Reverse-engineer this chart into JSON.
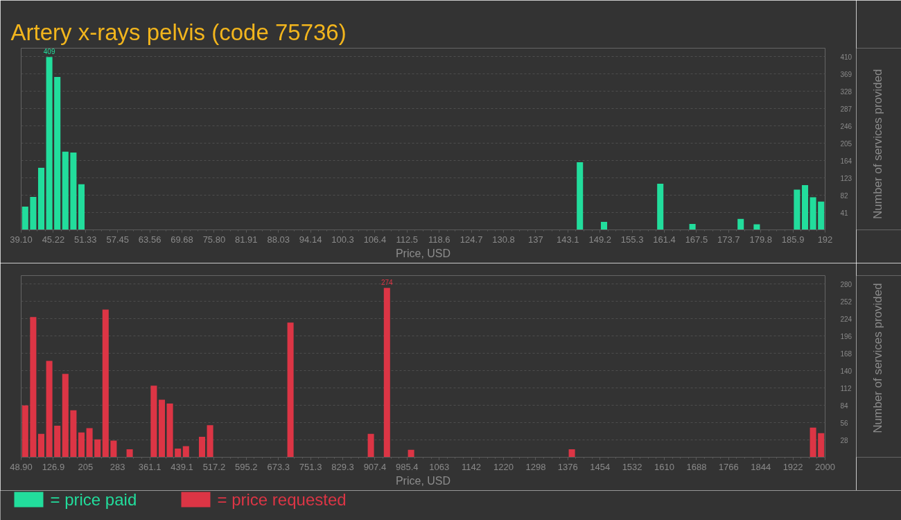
{
  "chart_data": [
    {
      "type": "histogram",
      "title": "Artery x-rays pelvis (code 75736)",
      "xlabel": "Price, USD",
      "ylabel": "Number of services provided",
      "bins": [
        39.1,
        40.629,
        42.158,
        43.687,
        45.216,
        46.745,
        48.274,
        49.803,
        51.332,
        52.861,
        54.39,
        55.919,
        57.448,
        58.977,
        60.506,
        62.035,
        63.564,
        65.093,
        66.622,
        68.151,
        69.68,
        71.209,
        72.738,
        74.267,
        75.796,
        77.325,
        78.854,
        80.383,
        81.912,
        83.441,
        84.97,
        86.499,
        88.028,
        89.557,
        91.086,
        92.615,
        94.144,
        95.673,
        97.202,
        98.731,
        100.26,
        101.789,
        103.318,
        104.847,
        106.376,
        107.905,
        109.434,
        110.963,
        112.492,
        114.021,
        115.55,
        117.079,
        118.608,
        120.137,
        121.666,
        123.195,
        124.724,
        126.253,
        127.782,
        129.311,
        130.84,
        132.369,
        133.898,
        135.427,
        136.956,
        138.485,
        140.014,
        141.543,
        143.072,
        144.601,
        146.13,
        147.659,
        149.188,
        150.717,
        152.246,
        153.775,
        155.304,
        156.833,
        158.362,
        159.891,
        161.42,
        162.949,
        164.478,
        166.007,
        167.536,
        169.065,
        170.594,
        172.123,
        173.652,
        175.181,
        176.71,
        178.239,
        179.768,
        181.297,
        182.826,
        184.355,
        185.884,
        187.413,
        188.942,
        190.471,
        192
      ],
      "series": [
        {
          "name": "= price paid",
          "color": "#22dd9c",
          "values": [
            55,
            78,
            147,
            409,
            362,
            185,
            183,
            108,
            0,
            0,
            0,
            0,
            0,
            0,
            0,
            0,
            0,
            0,
            0,
            0,
            0,
            0,
            0,
            0,
            0,
            0,
            0,
            0,
            0,
            0,
            0,
            0,
            0,
            0,
            0,
            0,
            0,
            0,
            0,
            0,
            0,
            0,
            0,
            0,
            0,
            0,
            0,
            0,
            0,
            0,
            0,
            0,
            0,
            0,
            0,
            0,
            0,
            0,
            0,
            0,
            0,
            0,
            0,
            0,
            0,
            0,
            0,
            0,
            0,
            160,
            0,
            0,
            19,
            0,
            0,
            0,
            0,
            0,
            0,
            109,
            0,
            0,
            0,
            14,
            0,
            0,
            0,
            0,
            0,
            26,
            0,
            13,
            0,
            0,
            0,
            0,
            95,
            106,
            77,
            67
          ],
          "value_labels": [
            null,
            null,
            null,
            "409",
            null,
            null,
            null,
            null,
            null,
            null,
            null,
            null,
            null,
            null,
            null,
            null,
            null,
            null,
            null,
            null,
            null,
            null,
            null,
            null,
            null,
            null,
            null,
            null,
            null,
            null,
            null,
            null,
            null,
            null,
            null,
            null,
            null,
            null,
            null,
            null,
            null,
            null,
            null,
            null,
            null,
            null,
            null,
            null,
            null,
            null,
            null,
            null,
            null,
            null,
            null,
            null,
            null,
            null,
            null,
            null,
            null,
            null,
            null,
            null,
            null,
            null,
            null,
            null,
            null,
            null,
            null,
            null,
            null,
            null,
            null,
            null,
            null,
            null,
            null,
            null,
            null,
            null,
            null,
            null,
            null,
            null,
            null,
            null,
            null,
            null,
            null,
            null,
            null,
            null,
            null,
            null,
            null,
            null,
            null,
            null
          ]
        }
      ],
      "xlim": [
        39.1,
        192
      ],
      "xticks": [
        {
          "value": 39.1,
          "label": "39.10"
        },
        {
          "value": 45.216,
          "label": "45.22"
        },
        {
          "value": 51.332,
          "label": "51.33"
        },
        {
          "value": 57.448,
          "label": "57.45"
        },
        {
          "value": 63.564,
          "label": "63.56"
        },
        69.68,
        {
          "value": 75.796,
          "label": "75.80"
        },
        {
          "value": 81.912,
          "label": "81.91"
        },
        {
          "value": 88.028,
          "label": "88.03"
        },
        {
          "value": 94.144,
          "label": "94.14"
        },
        {
          "value": 100.26,
          "label": "100.3"
        },
        {
          "value": 106.376,
          "label": "106.4"
        },
        {
          "value": 112.492,
          "label": "112.5"
        },
        {
          "value": 118.608,
          "label": "118.6"
        },
        {
          "value": 124.724,
          "label": "124.7"
        },
        {
          "value": 130.84,
          "label": "130.8"
        },
        {
          "value": 136.956,
          "label": "137"
        },
        {
          "value": 143.072,
          "label": "143.1"
        },
        {
          "value": 149.188,
          "label": "149.2"
        },
        {
          "value": 155.304,
          "label": "155.3"
        },
        {
          "value": 161.42,
          "label": "161.4"
        },
        {
          "value": 167.536,
          "label": "167.5"
        },
        {
          "value": 173.652,
          "label": "173.7"
        },
        {
          "value": 179.768,
          "label": "179.8"
        },
        {
          "value": 185.884,
          "label": "185.9"
        },
        192
      ],
      "ylim": [
        0,
        430
      ],
      "yticks": [
        41,
        82,
        123,
        164,
        205,
        246,
        287,
        328,
        369,
        410
      ],
      "grid": "y",
      "legend": "bottom left"
    },
    {
      "type": "histogram",
      "xlabel": "Price, USD",
      "ylabel": "Number of services provided",
      "bins": [
        48.9,
        68.411,
        87.922,
        107.433,
        126.944,
        146.455,
        165.966,
        185.477,
        204.988,
        224.499,
        244.01,
        263.521,
        283.032,
        302.543,
        322.054,
        341.565,
        361.076,
        380.587,
        400.098,
        419.609,
        439.12,
        458.631,
        478.142,
        497.653,
        517.164,
        536.675,
        556.186,
        575.697,
        595.208,
        614.719,
        634.23,
        653.741,
        673.252,
        692.763,
        712.274,
        731.785,
        751.296,
        770.807,
        790.318,
        809.829,
        829.34,
        848.851,
        868.362,
        887.873,
        907.384,
        926.895,
        946.406,
        965.917,
        985.428,
        1004.939,
        1024.45,
        1043.961,
        1063.472,
        1082.983,
        1102.494,
        1122.005,
        1141.516,
        1161.027,
        1180.538,
        1200.049,
        1219.56,
        1239.071,
        1258.582,
        1278.093,
        1297.604,
        1317.115,
        1336.626,
        1356.137,
        1375.648,
        1395.159,
        1414.67,
        1434.181,
        1453.692,
        1473.203,
        1492.714,
        1512.225,
        1531.736,
        1551.247,
        1570.758,
        1590.269,
        1609.78,
        1629.291,
        1648.802,
        1668.313,
        1687.824,
        1707.335,
        1726.846,
        1746.357,
        1765.868,
        1785.379,
        1804.89,
        1824.401,
        1843.912,
        1863.423,
        1882.934,
        1902.445,
        1921.956,
        1941.467,
        1960.978,
        1980.489,
        2000
      ],
      "series": [
        {
          "name": "= price requested",
          "color": "#dc3545",
          "values": [
            84,
            227,
            38,
            156,
            51,
            135,
            76,
            40,
            47,
            29,
            239,
            27,
            0,
            13,
            0,
            0,
            116,
            93,
            87,
            14,
            18,
            0,
            33,
            52,
            0,
            0,
            0,
            0,
            0,
            0,
            0,
            0,
            0,
            218,
            0,
            0,
            0,
            0,
            0,
            0,
            0,
            0,
            0,
            38,
            0,
            274,
            0,
            0,
            12,
            0,
            0,
            0,
            0,
            0,
            0,
            0,
            0,
            0,
            0,
            0,
            0,
            0,
            0,
            0,
            0,
            0,
            0,
            0,
            13,
            0,
            0,
            0,
            0,
            0,
            0,
            0,
            0,
            0,
            0,
            0,
            0,
            0,
            0,
            0,
            0,
            0,
            0,
            0,
            0,
            0,
            0,
            0,
            0,
            0,
            0,
            0,
            0,
            0,
            48,
            39
          ],
          "value_labels": [
            null,
            null,
            null,
            null,
            null,
            null,
            null,
            null,
            null,
            null,
            null,
            null,
            null,
            null,
            null,
            null,
            null,
            null,
            null,
            null,
            null,
            null,
            null,
            null,
            null,
            null,
            null,
            null,
            null,
            null,
            null,
            null,
            null,
            null,
            null,
            null,
            null,
            null,
            null,
            null,
            null,
            null,
            null,
            null,
            null,
            "274",
            null,
            null,
            null,
            null,
            null,
            null,
            null,
            null,
            null,
            null,
            null,
            null,
            null,
            null,
            null,
            null,
            null,
            null,
            null,
            null,
            null,
            null,
            null,
            null,
            null,
            null,
            null,
            null,
            null,
            null,
            null,
            null,
            null,
            null,
            null,
            null,
            null,
            null,
            null,
            null,
            null,
            null,
            null,
            null,
            null,
            null,
            null,
            null,
            null,
            null,
            null,
            null,
            null,
            null
          ]
        }
      ],
      "xlim": [
        48.9,
        2000
      ],
      "xticks": [
        {
          "value": 48.9,
          "label": "48.90"
        },
        {
          "value": 126.944,
          "label": "126.9"
        },
        {
          "value": 204.988,
          "label": "205"
        },
        {
          "value": 283.032,
          "label": "283"
        },
        {
          "value": 361.076,
          "label": "361.1"
        },
        {
          "value": 439.12,
          "label": "439.1"
        },
        {
          "value": 517.164,
          "label": "517.2"
        },
        {
          "value": 595.208,
          "label": "595.2"
        },
        {
          "value": 673.252,
          "label": "673.3"
        },
        {
          "value": 751.296,
          "label": "751.3"
        },
        {
          "value": 829.34,
          "label": "829.3"
        },
        {
          "value": 907.384,
          "label": "907.4"
        },
        {
          "value": 985.428,
          "label": "985.4"
        },
        {
          "value": 1063.472,
          "label": "1063"
        },
        {
          "value": 1141.516,
          "label": "1142"
        },
        {
          "value": 1219.56,
          "label": "1220"
        },
        {
          "value": 1297.604,
          "label": "1298"
        },
        {
          "value": 1375.648,
          "label": "1376"
        },
        {
          "value": 1453.692,
          "label": "1454"
        },
        {
          "value": 1531.736,
          "label": "1532"
        },
        {
          "value": 1609.78,
          "label": "1610"
        },
        {
          "value": 1687.824,
          "label": "1688"
        },
        {
          "value": 1765.868,
          "label": "1766"
        },
        {
          "value": 1843.912,
          "label": "1844"
        },
        {
          "value": 1921.956,
          "label": "1922"
        },
        2000
      ],
      "ylim": [
        0,
        294
      ],
      "yticks": [
        28,
        56,
        84,
        112,
        140,
        168,
        196,
        224,
        252,
        280
      ],
      "grid": "y",
      "legend": "bottom left"
    }
  ]
}
